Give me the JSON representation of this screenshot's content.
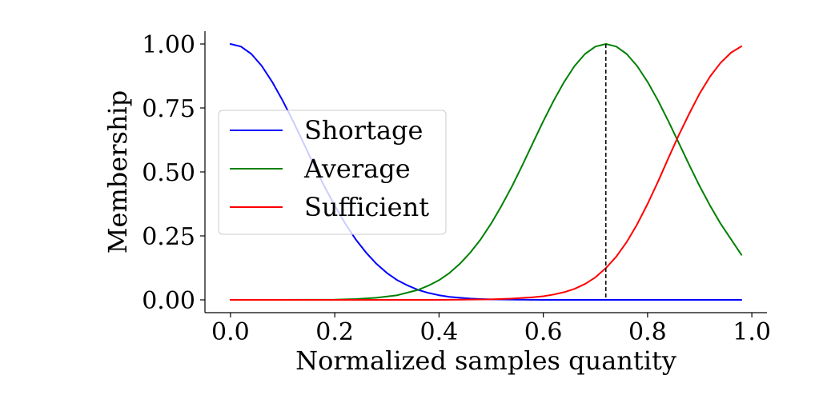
{
  "chart_data": {
    "type": "line",
    "title": "",
    "xlabel": "Normalized samples quantity",
    "ylabel": "Membership",
    "xlim": [
      -0.049,
      1.029
    ],
    "ylim": [
      -0.05,
      1.05
    ],
    "x_ticks": [
      "0.0",
      "0.2",
      "0.4",
      "0.6",
      "0.8",
      "1.0"
    ],
    "x_tick_values": [
      0,
      0.2,
      0.4,
      0.6,
      0.8,
      1.0
    ],
    "y_ticks": [
      "0.00",
      "0.25",
      "0.50",
      "0.75",
      "1.00"
    ],
    "y_tick_values": [
      0,
      0.25,
      0.5,
      0.75,
      1.0
    ],
    "grid": false,
    "legend_position": "center-left",
    "spines": "left-bottom",
    "marker_line": {
      "x": 0.72,
      "style": "dashed",
      "color": "#000000"
    },
    "series": [
      {
        "name": "Shortage",
        "color": "#0000ff",
        "x": [
          0.0,
          0.02,
          0.04,
          0.06,
          0.08,
          0.1,
          0.12,
          0.14,
          0.16,
          0.18,
          0.2,
          0.22,
          0.24,
          0.26,
          0.28,
          0.3,
          0.32,
          0.34,
          0.36,
          0.38,
          0.4,
          0.42,
          0.44,
          0.46,
          0.48,
          0.5,
          0.55,
          0.6,
          0.7,
          0.8,
          0.9,
          0.98
        ],
        "y": [
          1.0,
          0.99,
          0.961,
          0.914,
          0.852,
          0.779,
          0.698,
          0.613,
          0.527,
          0.444,
          0.368,
          0.298,
          0.237,
          0.185,
          0.141,
          0.105,
          0.077,
          0.056,
          0.039,
          0.027,
          0.018,
          0.012,
          0.008,
          0.005,
          0.003,
          0.002,
          0.001,
          0.0,
          0.0,
          0.0,
          0.0,
          0.0
        ]
      },
      {
        "name": "Average",
        "color": "#008000",
        "x": [
          0.0,
          0.1,
          0.2,
          0.24,
          0.28,
          0.32,
          0.36,
          0.38,
          0.4,
          0.42,
          0.44,
          0.46,
          0.48,
          0.5,
          0.52,
          0.54,
          0.56,
          0.58,
          0.6,
          0.62,
          0.64,
          0.66,
          0.68,
          0.7,
          0.72,
          0.74,
          0.76,
          0.78,
          0.8,
          0.82,
          0.84,
          0.86,
          0.88,
          0.9,
          0.92,
          0.94,
          0.96,
          0.98
        ],
        "y": [
          0.0,
          0.0,
          0.001,
          0.003,
          0.008,
          0.018,
          0.039,
          0.056,
          0.077,
          0.105,
          0.141,
          0.185,
          0.237,
          0.298,
          0.368,
          0.444,
          0.527,
          0.613,
          0.698,
          0.779,
          0.852,
          0.914,
          0.961,
          0.99,
          1.0,
          0.99,
          0.961,
          0.914,
          0.852,
          0.779,
          0.698,
          0.613,
          0.527,
          0.444,
          0.368,
          0.298,
          0.237,
          0.176
        ]
      },
      {
        "name": "Sufficient",
        "color": "#ff0000",
        "x": [
          0.0,
          0.2,
          0.4,
          0.5,
          0.54,
          0.58,
          0.6,
          0.62,
          0.64,
          0.66,
          0.68,
          0.7,
          0.72,
          0.74,
          0.76,
          0.78,
          0.8,
          0.82,
          0.84,
          0.86,
          0.88,
          0.9,
          0.92,
          0.94,
          0.96,
          0.98
        ],
        "y": [
          0.0,
          0.0,
          0.0,
          0.002,
          0.005,
          0.01,
          0.014,
          0.021,
          0.03,
          0.043,
          0.062,
          0.088,
          0.124,
          0.169,
          0.226,
          0.295,
          0.375,
          0.462,
          0.554,
          0.644,
          0.728,
          0.807,
          0.873,
          0.926,
          0.966,
          0.991
        ]
      }
    ]
  }
}
